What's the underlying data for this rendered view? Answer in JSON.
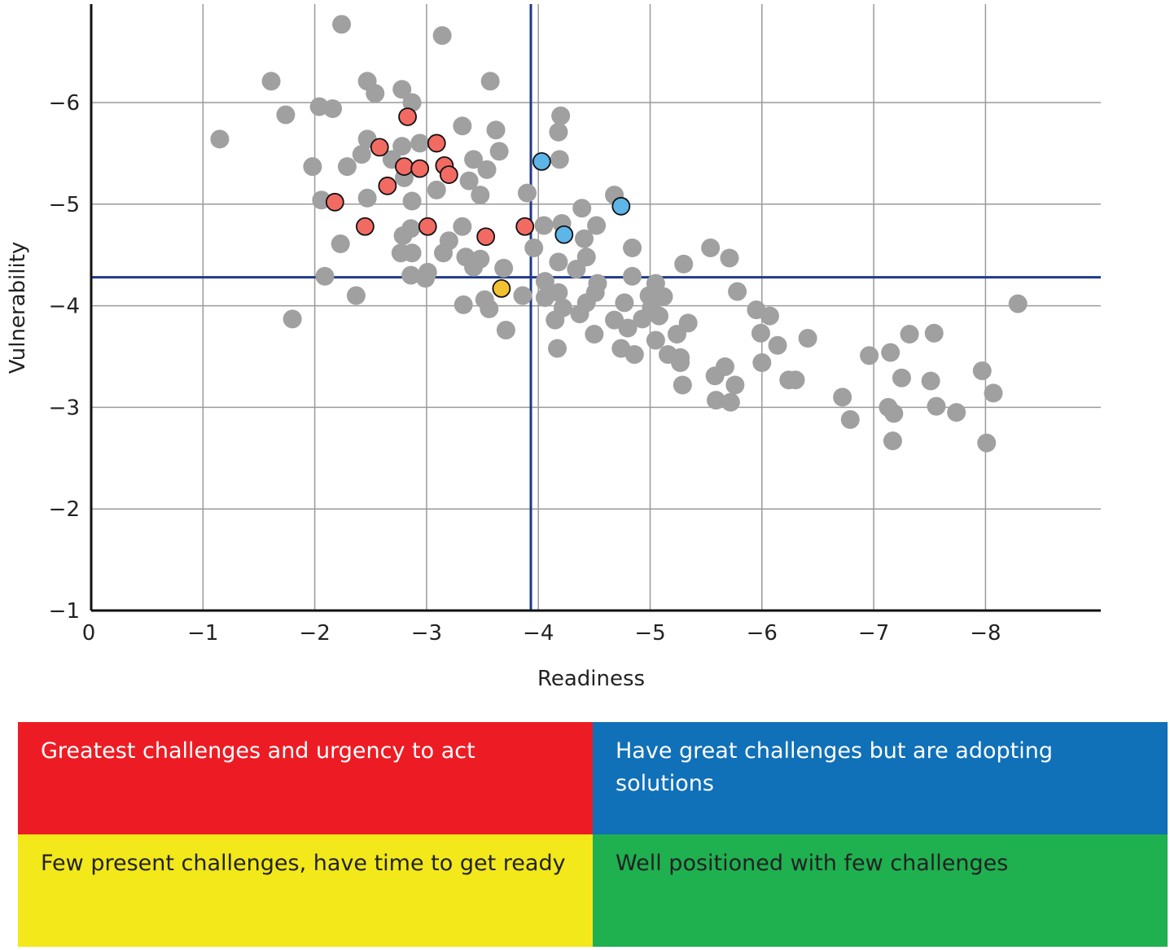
{
  "chart_data": {
    "type": "scatter",
    "xlabel": "Readiness",
    "ylabel": "Vulnerability",
    "xlim": [
      0,
      -9
    ],
    "ylim": [
      -1,
      -7
    ],
    "x_ticks": [
      "0",
      "−1",
      "−2",
      "−3",
      "−4",
      "−5",
      "−6",
      "−7",
      "−8"
    ],
    "x_tick_values": [
      0,
      -1,
      -2,
      -3,
      -4,
      -5,
      -6,
      -7,
      -8
    ],
    "y_ticks": [
      "−1",
      "−2",
      "−3",
      "−4",
      "−5",
      "−6"
    ],
    "y_tick_values": [
      -1,
      -2,
      -3,
      -4,
      -5,
      -6
    ],
    "grid": true,
    "quadrant_lines": {
      "x": -4,
      "y": -4.28,
      "color": "#1F3A8A"
    },
    "colors": {
      "gray": "#A0A0A0",
      "red": "#F26B63",
      "blue": "#5DB5E8",
      "yellow": "#F2C230"
    },
    "series": [
      {
        "color_key": "gray",
        "points": [
          [
            -1.15,
            -5.64
          ],
          [
            -1.61,
            -6.21
          ],
          [
            -1.74,
            -5.88
          ],
          [
            -2.24,
            -6.77
          ],
          [
            -3.14,
            -6.66
          ],
          [
            -2.04,
            -5.96
          ],
          [
            -2.16,
            -5.94
          ],
          [
            -2.47,
            -6.21
          ],
          [
            -2.54,
            -6.09
          ],
          [
            -2.78,
            -6.13
          ],
          [
            -2.87,
            -6.0
          ],
          [
            -3.57,
            -6.21
          ],
          [
            -1.98,
            -5.37
          ],
          [
            -2.06,
            -5.04
          ],
          [
            -2.29,
            -5.37
          ],
          [
            -2.47,
            -5.64
          ],
          [
            -2.42,
            -5.49
          ],
          [
            -2.69,
            -5.44
          ],
          [
            -2.78,
            -5.57
          ],
          [
            -2.94,
            -5.6
          ],
          [
            -2.8,
            -5.26
          ],
          [
            -3.32,
            -5.77
          ],
          [
            -3.62,
            -5.73
          ],
          [
            -3.65,
            -5.52
          ],
          [
            -3.42,
            -5.44
          ],
          [
            -3.54,
            -5.34
          ],
          [
            -3.38,
            -5.23
          ],
          [
            -3.09,
            -5.14
          ],
          [
            -3.48,
            -5.09
          ],
          [
            -2.87,
            -5.03
          ],
          [
            -2.47,
            -5.06
          ],
          [
            -4.2,
            -5.87
          ],
          [
            -4.18,
            -5.71
          ],
          [
            -4.19,
            -5.44
          ],
          [
            -3.9,
            -5.11
          ],
          [
            -4.68,
            -5.09
          ],
          [
            -4.39,
            -4.96
          ],
          [
            -4.21,
            -4.81
          ],
          [
            -4.05,
            -4.79
          ],
          [
            -4.52,
            -4.79
          ],
          [
            -3.32,
            -4.78
          ],
          [
            -2.86,
            -4.76
          ],
          [
            -2.79,
            -4.69
          ],
          [
            -2.23,
            -4.61
          ],
          [
            -3.2,
            -4.64
          ],
          [
            -3.15,
            -4.52
          ],
          [
            -2.77,
            -4.52
          ],
          [
            -2.87,
            -4.52
          ],
          [
            -3.96,
            -4.57
          ],
          [
            -4.41,
            -4.66
          ],
          [
            -4.43,
            -4.48
          ],
          [
            -4.18,
            -4.43
          ],
          [
            -4.34,
            -4.36
          ],
          [
            -4.84,
            -4.57
          ],
          [
            -5.54,
            -4.57
          ],
          [
            -5.71,
            -4.47
          ],
          [
            -5.3,
            -4.41
          ],
          [
            -3.35,
            -4.48
          ],
          [
            -3.48,
            -4.46
          ],
          [
            -3.42,
            -4.38
          ],
          [
            -3.69,
            -4.37
          ],
          [
            -2.86,
            -4.3
          ],
          [
            -3.01,
            -4.33
          ],
          [
            -2.99,
            -4.27
          ],
          [
            -2.09,
            -4.29
          ],
          [
            -4.84,
            -4.29
          ],
          [
            -4.06,
            -4.24
          ],
          [
            -4.53,
            -4.22
          ],
          [
            -5.05,
            -4.22
          ],
          [
            -5.78,
            -4.14
          ],
          [
            -4.51,
            -4.13
          ],
          [
            -4.18,
            -4.13
          ],
          [
            -4.06,
            -4.08
          ],
          [
            -3.86,
            -4.1
          ],
          [
            -2.37,
            -4.1
          ],
          [
            -3.52,
            -4.06
          ],
          [
            -4.77,
            -4.03
          ],
          [
            -4.43,
            -4.03
          ],
          [
            -4.99,
            -4.1
          ],
          [
            -5.12,
            -4.09
          ],
          [
            -5.01,
            -3.98
          ],
          [
            -4.22,
            -3.98
          ],
          [
            -3.33,
            -4.01
          ],
          [
            -3.56,
            -3.97
          ],
          [
            -5.95,
            -3.96
          ],
          [
            -6.07,
            -3.9
          ],
          [
            -5.08,
            -3.9
          ],
          [
            -4.37,
            -3.92
          ],
          [
            -4.15,
            -3.86
          ],
          [
            -4.68,
            -3.86
          ],
          [
            -4.93,
            -3.87
          ],
          [
            -5.34,
            -3.83
          ],
          [
            -1.8,
            -3.87
          ],
          [
            -4.8,
            -3.78
          ],
          [
            -3.71,
            -3.76
          ],
          [
            -4.5,
            -3.72
          ],
          [
            -5.24,
            -3.72
          ],
          [
            -5.99,
            -3.73
          ],
          [
            -6.41,
            -3.68
          ],
          [
            -7.32,
            -3.72
          ],
          [
            -7.54,
            -3.73
          ],
          [
            -5.05,
            -3.66
          ],
          [
            -6.14,
            -3.61
          ],
          [
            -4.74,
            -3.58
          ],
          [
            -4.17,
            -3.58
          ],
          [
            -4.86,
            -3.52
          ],
          [
            -5.16,
            -3.52
          ],
          [
            -5.27,
            -3.49
          ],
          [
            -6.96,
            -3.51
          ],
          [
            -7.15,
            -3.54
          ],
          [
            -6.0,
            -3.44
          ],
          [
            -5.67,
            -3.4
          ],
          [
            -5.58,
            -3.31
          ],
          [
            -5.27,
            -3.44
          ],
          [
            -5.76,
            -3.22
          ],
          [
            -5.29,
            -3.22
          ],
          [
            -6.24,
            -3.27
          ],
          [
            -6.3,
            -3.27
          ],
          [
            -7.25,
            -3.29
          ],
          [
            -7.51,
            -3.26
          ],
          [
            -7.97,
            -3.36
          ],
          [
            -8.07,
            -3.14
          ],
          [
            -8.29,
            -4.02
          ],
          [
            -6.72,
            -3.1
          ],
          [
            -7.13,
            -3.0
          ],
          [
            -7.18,
            -2.94
          ],
          [
            -7.56,
            -3.01
          ],
          [
            -7.74,
            -2.95
          ],
          [
            -6.79,
            -2.88
          ],
          [
            -5.59,
            -3.07
          ],
          [
            -5.72,
            -3.05
          ],
          [
            -7.17,
            -2.67
          ],
          [
            -8.01,
            -2.65
          ]
        ]
      },
      {
        "color_key": "red",
        "points": [
          [
            -2.83,
            -5.86
          ],
          [
            -3.09,
            -5.6
          ],
          [
            -2.58,
            -5.56
          ],
          [
            -2.8,
            -5.37
          ],
          [
            -2.94,
            -5.35
          ],
          [
            -3.16,
            -5.38
          ],
          [
            -3.2,
            -5.29
          ],
          [
            -2.65,
            -5.18
          ],
          [
            -2.18,
            -5.02
          ],
          [
            -2.45,
            -4.78
          ],
          [
            -3.01,
            -4.78
          ],
          [
            -3.53,
            -4.68
          ],
          [
            -3.88,
            -4.78
          ]
        ]
      },
      {
        "color_key": "blue",
        "points": [
          [
            -4.03,
            -5.42
          ],
          [
            -4.74,
            -4.98
          ],
          [
            -4.23,
            -4.7
          ]
        ]
      },
      {
        "color_key": "yellow",
        "points": [
          [
            -3.67,
            -4.17
          ]
        ]
      }
    ]
  },
  "legend": {
    "red": {
      "label": "Greatest challenges and urgency to act",
      "color": "#ED1C24"
    },
    "blue": {
      "label": "Have great challenges but are adopting solutions",
      "color": "#1070B8"
    },
    "yellow": {
      "label": "Few present challenges, have time to get ready",
      "color": "#F2E81A"
    },
    "green": {
      "label": "Well positioned with few challenges",
      "color": "#1FB050"
    }
  }
}
